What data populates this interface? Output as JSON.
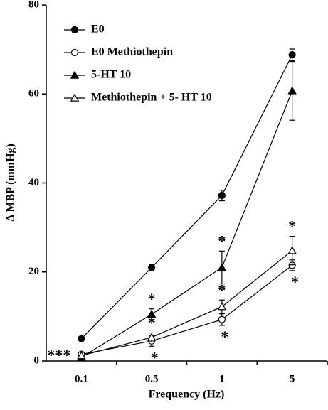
{
  "chart_data": {
    "type": "line",
    "x_label": "Frequency (Hz)",
    "y_label": "Δ MBP (mmHg)",
    "categories": [
      "0.1",
      "0.5",
      "1",
      "5"
    ],
    "ylim": [
      0,
      80
    ],
    "yticks": [
      0,
      20,
      40,
      60,
      80
    ],
    "legend": "upper left",
    "annotations": [
      "***"
    ],
    "series": [
      {
        "name": "E0",
        "color": "#000000",
        "marker": "circle",
        "filled": true,
        "values": [
          5,
          21,
          37.2,
          68.8
        ],
        "errors": [
          null,
          0.7,
          1.2,
          1.3
        ],
        "significance": [
          null,
          null,
          null,
          null
        ],
        "significance_side": "above"
      },
      {
        "name": "E0 Methiothepin",
        "color": "#000000",
        "marker": "circle",
        "filled": false,
        "values": [
          1.5,
          4.5,
          9.3,
          21.5
        ],
        "errors": [
          null,
          1.2,
          1.3,
          1.2
        ],
        "significance": [
          null,
          "*",
          "*",
          "*"
        ],
        "significance_side": "below"
      },
      {
        "name": "5-HT 10",
        "color": "#000000",
        "marker": "triangle",
        "filled": true,
        "values": [
          0.8,
          10.5,
          21,
          60.7
        ],
        "errors": [
          null,
          1.2,
          3.7,
          6.6
        ],
        "significance": [
          null,
          "*",
          "*",
          null
        ],
        "significance_side": "above"
      },
      {
        "name": "Methiothepin + 5- HT 10",
        "color": "#000000",
        "marker": "triangle",
        "filled": false,
        "values": [
          1.2,
          5.3,
          12.2,
          24.8
        ],
        "errors": [
          null,
          1,
          1.5,
          3.2
        ],
        "significance": [
          null,
          "*",
          "*",
          "*"
        ],
        "significance_side": "above"
      }
    ]
  }
}
